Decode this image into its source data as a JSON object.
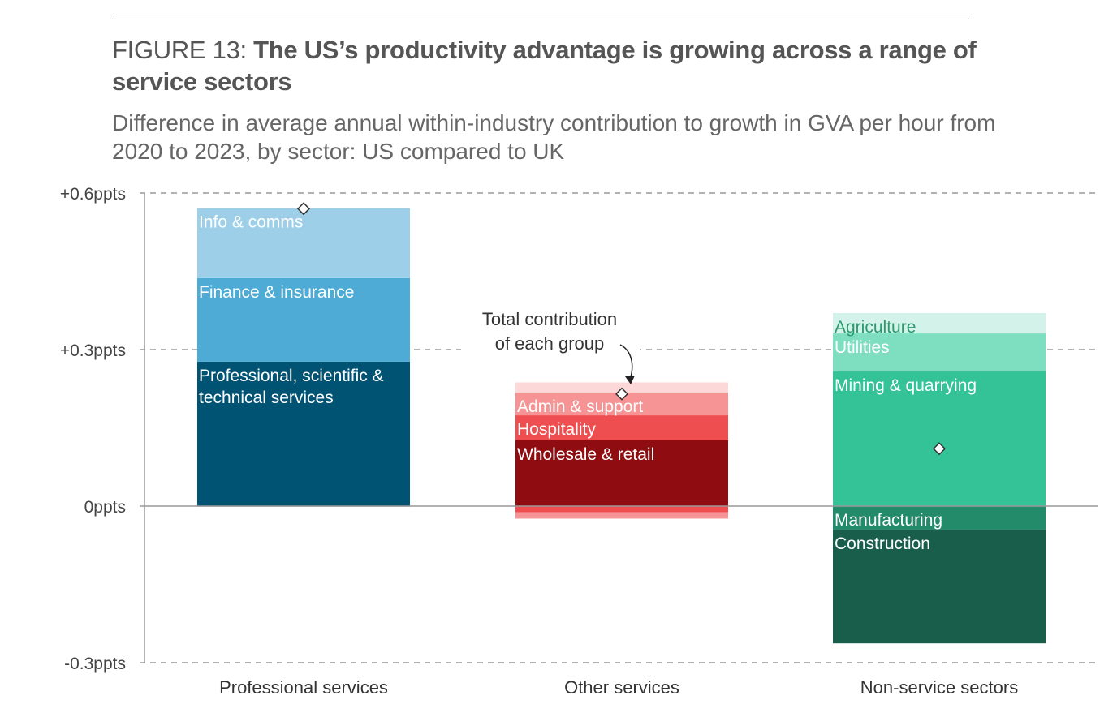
{
  "header": {
    "figure_label": "FIGURE 13:",
    "title": "The US’s productivity advantage is growing across a range of service sectors",
    "subtitle": "Difference in average annual within-industry contribution to growth in GVA per hour from 2020 to 2023, by sector: US compared to UK"
  },
  "chart_data": {
    "type": "bar",
    "stacked": true,
    "title": "The US’s productivity advantage is growing across a range of service sectors",
    "ylabel": "",
    "xlabel": "",
    "ylim": [
      -0.3,
      0.6
    ],
    "yticks": [
      {
        "value": 0.6,
        "label": "+0.6ppts"
      },
      {
        "value": 0.3,
        "label": "+0.3ppts"
      },
      {
        "value": 0,
        "label": "0ppts"
      },
      {
        "value": -0.3,
        "label": "-0.3ppts"
      }
    ],
    "grid": true,
    "categories": [
      "Professional services",
      "Other services",
      "Non-service sectors"
    ],
    "groups": [
      {
        "category": "Professional services",
        "total": 0.57,
        "segments": [
          {
            "name": "Professional, scientific & technical services",
            "value": 0.277,
            "color": "#005373",
            "label_color": "#ffffff",
            "labelled": true
          },
          {
            "name": "Finance & insurance",
            "value": 0.16,
            "color": "#4eabd5",
            "label_color": "#ffffff",
            "labelled": true
          },
          {
            "name": "Info & comms",
            "value": 0.134,
            "color": "#9dd0e8",
            "label_color": "#ffffff",
            "labelled": true
          }
        ]
      },
      {
        "category": "Other services",
        "total": 0.215,
        "segments": [
          {
            "name": "Wholesale & retail",
            "value": 0.126,
            "color": "#8f0d10",
            "label_color": "#ffffff",
            "labelled": true
          },
          {
            "name": "Hospitality",
            "value": 0.048,
            "color": "#ef4e50",
            "label_color": "#ffffff",
            "labelled": true
          },
          {
            "name": "Admin & support",
            "value": 0.044,
            "color": "#f69394",
            "label_color": "#ffffff",
            "labelled": true
          },
          {
            "name": "",
            "value": 0.019,
            "color": "#fdd8d8",
            "label_color": "#ffffff",
            "labelled": false
          },
          {
            "name": "",
            "value": -0.012,
            "color": "#ef4e50",
            "label_color": "#ffffff",
            "labelled": false
          },
          {
            "name": "",
            "value": -0.012,
            "color": "#f69394",
            "label_color": "#ffffff",
            "labelled": false
          }
        ]
      },
      {
        "category": "Non-service sectors",
        "total": 0.11,
        "segments": [
          {
            "name": "Mining & quarrying",
            "value": 0.258,
            "color": "#34c396",
            "label_color": "#ffffff",
            "labelled": true
          },
          {
            "name": "Utilities",
            "value": 0.073,
            "color": "#7ddec0",
            "label_color": "#ffffff",
            "labelled": true
          },
          {
            "name": "Agriculture",
            "value": 0.039,
            "color": "#d3f3ea",
            "label_color": "#2a9a6e",
            "labelled": true
          },
          {
            "name": "Manufacturing",
            "value": -0.045,
            "color": "#238a6a",
            "label_color": "#ffffff",
            "labelled": true
          },
          {
            "name": "Construction",
            "value": -0.218,
            "color": "#195e4b",
            "label_color": "#ffffff",
            "labelled": true
          }
        ]
      }
    ],
    "annotations": [
      {
        "text_lines": [
          "Total contribution",
          "of each group"
        ],
        "points_to": "Other services total"
      }
    ],
    "total_marker": "diamond"
  }
}
